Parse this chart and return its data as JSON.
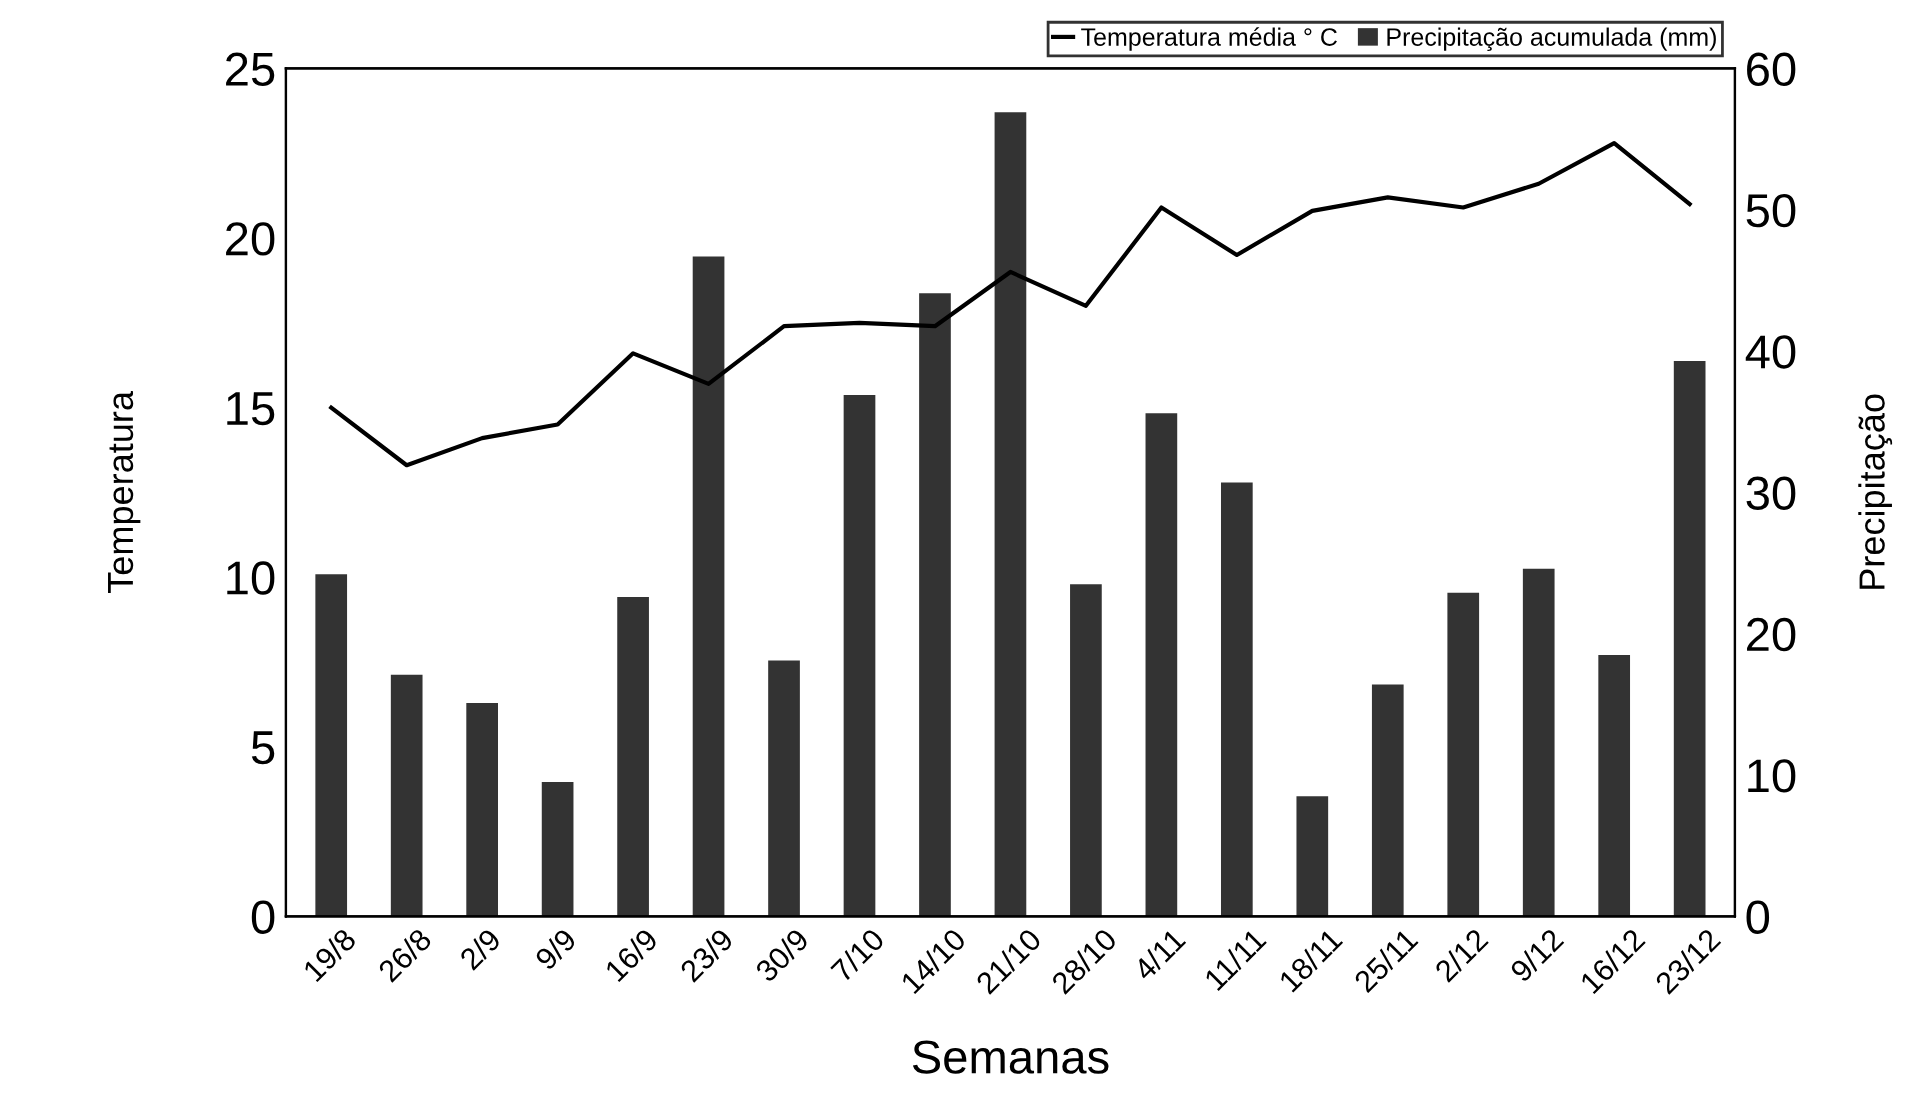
{
  "chart_data": {
    "type": "bar",
    "xlabel": "Semanas",
    "ylabel": "Temperatura",
    "y2label": "Precipitação",
    "categories": [
      "19/8",
      "26/8",
      "2/9",
      "9/9",
      "16/9",
      "23/9",
      "30/9",
      "7/10",
      "14/10",
      "21/10",
      "28/10",
      "4/11",
      "11/11",
      "18/11",
      "25/11",
      "2/12",
      "9/12",
      "16/12",
      "23/12"
    ],
    "series": [
      {
        "name": "Temperatura média ° C",
        "type": "line",
        "color": "#000000",
        "values": [
          15.0,
          13.3,
          14.1,
          14.5,
          16.6,
          15.7,
          17.4,
          17.5,
          17.4,
          19.0,
          18.0,
          20.9,
          19.5,
          20.8,
          21.2,
          20.9,
          21.6,
          22.8,
          21.0
        ]
      },
      {
        "name": "Precipitação acumulada (mm)",
        "axis": "y2",
        "color": "#333333",
        "values": [
          24.2,
          17.1,
          15.1,
          9.5,
          22.6,
          46.7,
          18.1,
          36.9,
          44.1,
          56.9,
          23.5,
          35.6,
          30.7,
          8.5,
          16.4,
          22.9,
          24.6,
          18.5,
          39.3
        ]
      }
    ],
    "ylim": [
      0,
      25
    ],
    "yticks": [
      0,
      5,
      10,
      15,
      20,
      25
    ],
    "y2lim": [
      0,
      60
    ],
    "y2ticks": [
      0,
      10,
      20,
      30,
      40,
      50,
      60
    ],
    "legend": "top right",
    "grid": false,
    "marker": "none",
    "line_style": "solid"
  }
}
